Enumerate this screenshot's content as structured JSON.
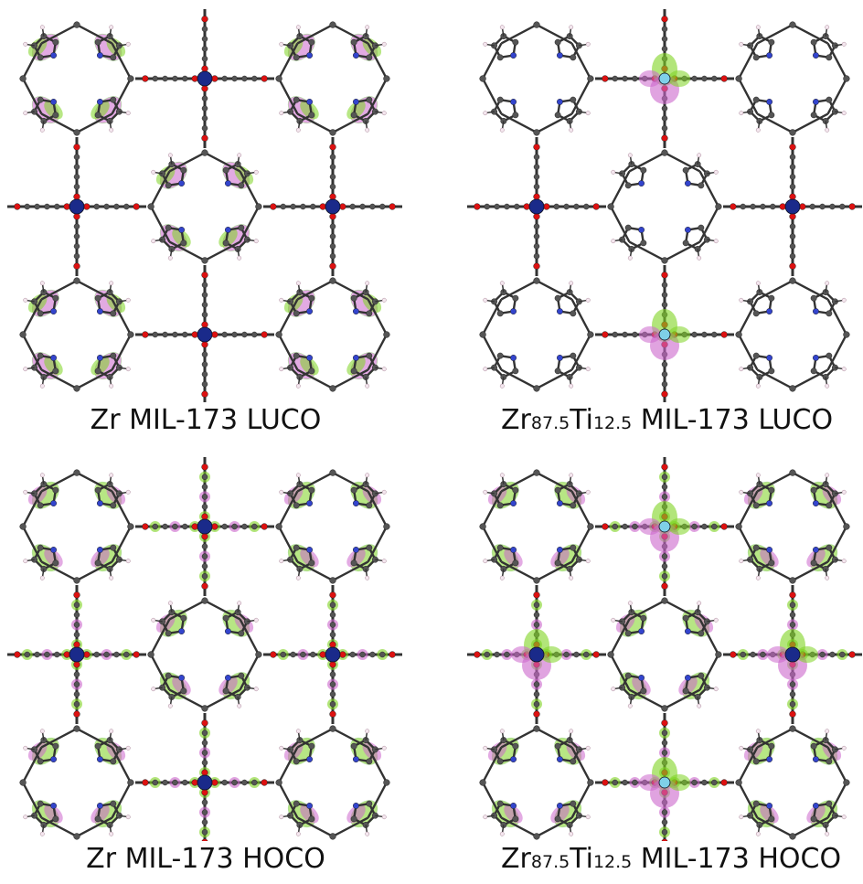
{
  "panels": [
    {
      "caption": "Zr MIL-173 LUCO",
      "orbital": "luco",
      "metal": "zr"
    },
    {
      "caption_parts": [
        "Zr",
        "87.5",
        "Ti",
        "12.5",
        " MIL-173 LUCO"
      ],
      "orbital": "luco",
      "metal": "zrti"
    },
    {
      "caption": "Zr MIL-173 HOCO",
      "orbital": "hoco",
      "metal": "zr"
    },
    {
      "caption_parts": [
        "Zr",
        "87.5",
        "Ti",
        "12.5",
        " MIL-173 HOCO"
      ],
      "orbital": "hoco",
      "metal": "zrti"
    }
  ],
  "colors": {
    "lobe_green": "#7ed321",
    "lobe_pink": "#cc66cc",
    "carbon": "#555555",
    "zr": "#1a2a8a",
    "ti": "#7fd0e8",
    "oxygen": "#dd1111",
    "nitrogen": "#3344cc",
    "bond": "#333333"
  }
}
